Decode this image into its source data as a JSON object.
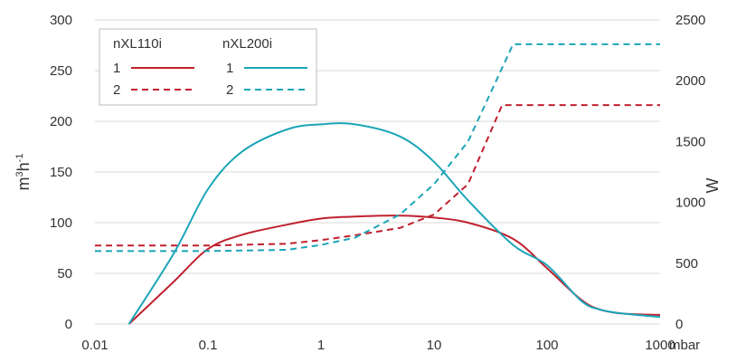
{
  "chart_data": {
    "type": "line",
    "x_scale": "log",
    "xlim": [
      0.01,
      1000
    ],
    "xticks": [
      "0.01",
      "0.1",
      "1",
      "10",
      "100",
      "1000"
    ],
    "xunit": "mbar",
    "ylim_left": [
      0,
      300
    ],
    "yticks_left": [
      "0",
      "50",
      "100",
      "150",
      "200",
      "250",
      "300"
    ],
    "ylabel_left_base": "m",
    "ylabel_left_sup1": "3",
    "ylabel_left_mid": "h",
    "ylabel_left_sup2": "-1",
    "ylim_right": [
      0,
      2500
    ],
    "yticks_right": [
      "0",
      "500",
      "1000",
      "1500",
      "2000",
      "2500"
    ],
    "ylabel_right": "W",
    "grid": "horizontal",
    "legend": {
      "placement": "top-left",
      "groups": [
        {
          "title": "nXL110i",
          "color": "#c0202f",
          "entries": [
            {
              "label": "1",
              "style": "solid"
            },
            {
              "label": "2",
              "style": "dashed"
            }
          ]
        },
        {
          "title": "nXL200i",
          "color": "#1ba5b8",
          "entries": [
            {
              "label": "1",
              "style": "solid"
            },
            {
              "label": "2",
              "style": "dashed"
            }
          ]
        }
      ]
    },
    "series": [
      {
        "pump": "nXL110i",
        "curve": "1",
        "axis": "left",
        "style": "solid",
        "color": "#c0202f",
        "x": [
          0.02,
          0.05,
          0.1,
          0.2,
          0.5,
          1,
          2,
          5,
          10,
          20,
          50,
          100,
          200,
          300,
          500,
          1000
        ],
        "y": [
          0,
          42,
          74,
          88,
          98,
          104,
          106,
          107,
          105,
          100,
          84,
          55,
          24,
          14,
          10,
          9
        ]
      },
      {
        "pump": "nXL110i",
        "curve": "2",
        "axis": "right",
        "style": "dashed",
        "color": "#c0202f",
        "x": [
          0.01,
          0.1,
          0.5,
          1,
          2,
          5,
          10,
          20,
          40,
          1000
        ],
        "y": [
          645,
          645,
          660,
          690,
          730,
          790,
          900,
          1150,
          1800,
          1800
        ]
      },
      {
        "pump": "nXL200i",
        "curve": "1",
        "axis": "left",
        "style": "solid",
        "color": "#1ba5b8",
        "x": [
          0.02,
          0.05,
          0.1,
          0.2,
          0.5,
          1,
          2,
          5,
          10,
          20,
          50,
          100,
          200,
          300,
          500,
          1000
        ],
        "y": [
          0,
          70,
          133,
          170,
          192,
          197,
          197,
          185,
          160,
          122,
          78,
          58,
          23,
          14,
          10,
          7
        ]
      },
      {
        "pump": "nXL200i",
        "curve": "2",
        "axis": "right",
        "style": "dashed",
        "color": "#1ba5b8",
        "x": [
          0.01,
          0.1,
          0.5,
          1,
          2,
          5,
          10,
          20,
          50,
          1000
        ],
        "y": [
          600,
          600,
          610,
          650,
          710,
          900,
          1150,
          1500,
          2300,
          2300
        ]
      }
    ]
  }
}
